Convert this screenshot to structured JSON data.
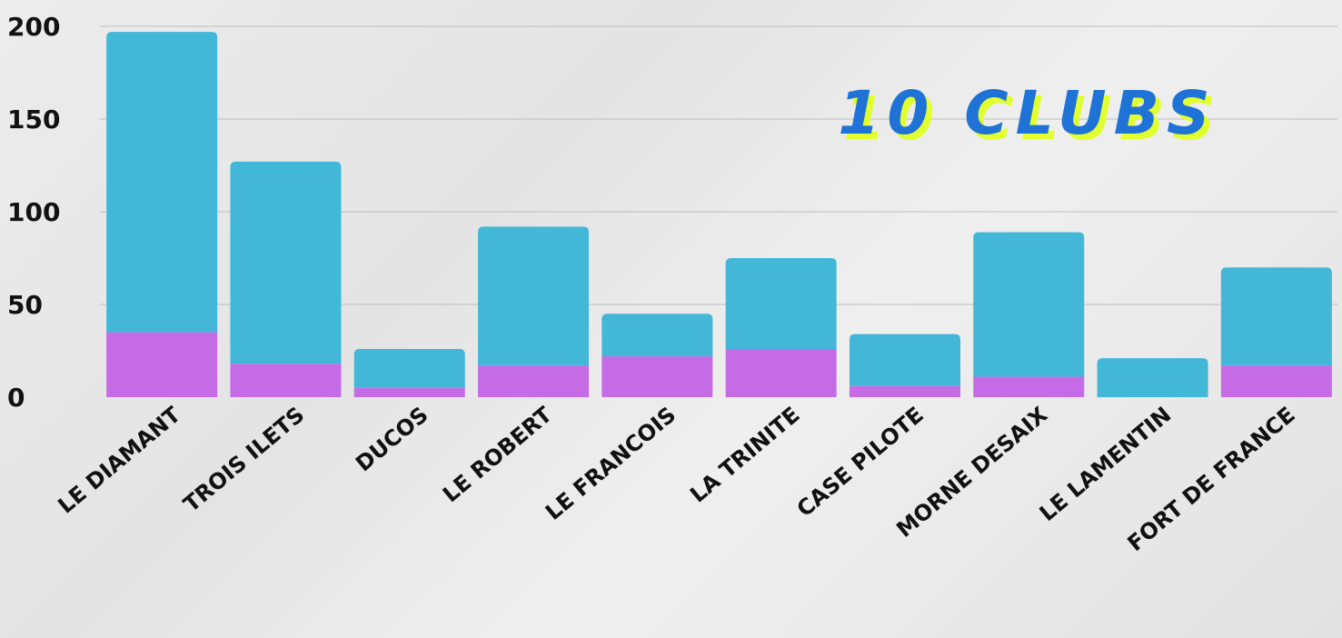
{
  "chart_data": {
    "type": "bar",
    "stacked": true,
    "title": "10 CLUBS",
    "categories": [
      "LE DIAMANT",
      "TROIS ILETS",
      "DUCOS",
      "LE ROBERT",
      "LE FRANCOIS",
      "LA TRINITE",
      "CASE PILOTE",
      "MORNE DESAIX",
      "LE LAMENTIN",
      "FORT DE FRANCE"
    ],
    "series": [
      {
        "values": [
          35,
          18,
          5,
          17,
          22,
          26,
          6,
          11,
          0,
          17
        ],
        "color": "#c56be6"
      },
      {
        "values": [
          162,
          109,
          21,
          75,
          23,
          49,
          28,
          78,
          21,
          53
        ],
        "color": "#42b7d8"
      }
    ],
    "ylim": [
      0,
      200
    ],
    "yticks": [
      0,
      50,
      100,
      150,
      200
    ],
    "grid": true,
    "title_color": "#1f73d6",
    "title_shadow_color": "#e2ff2e"
  }
}
